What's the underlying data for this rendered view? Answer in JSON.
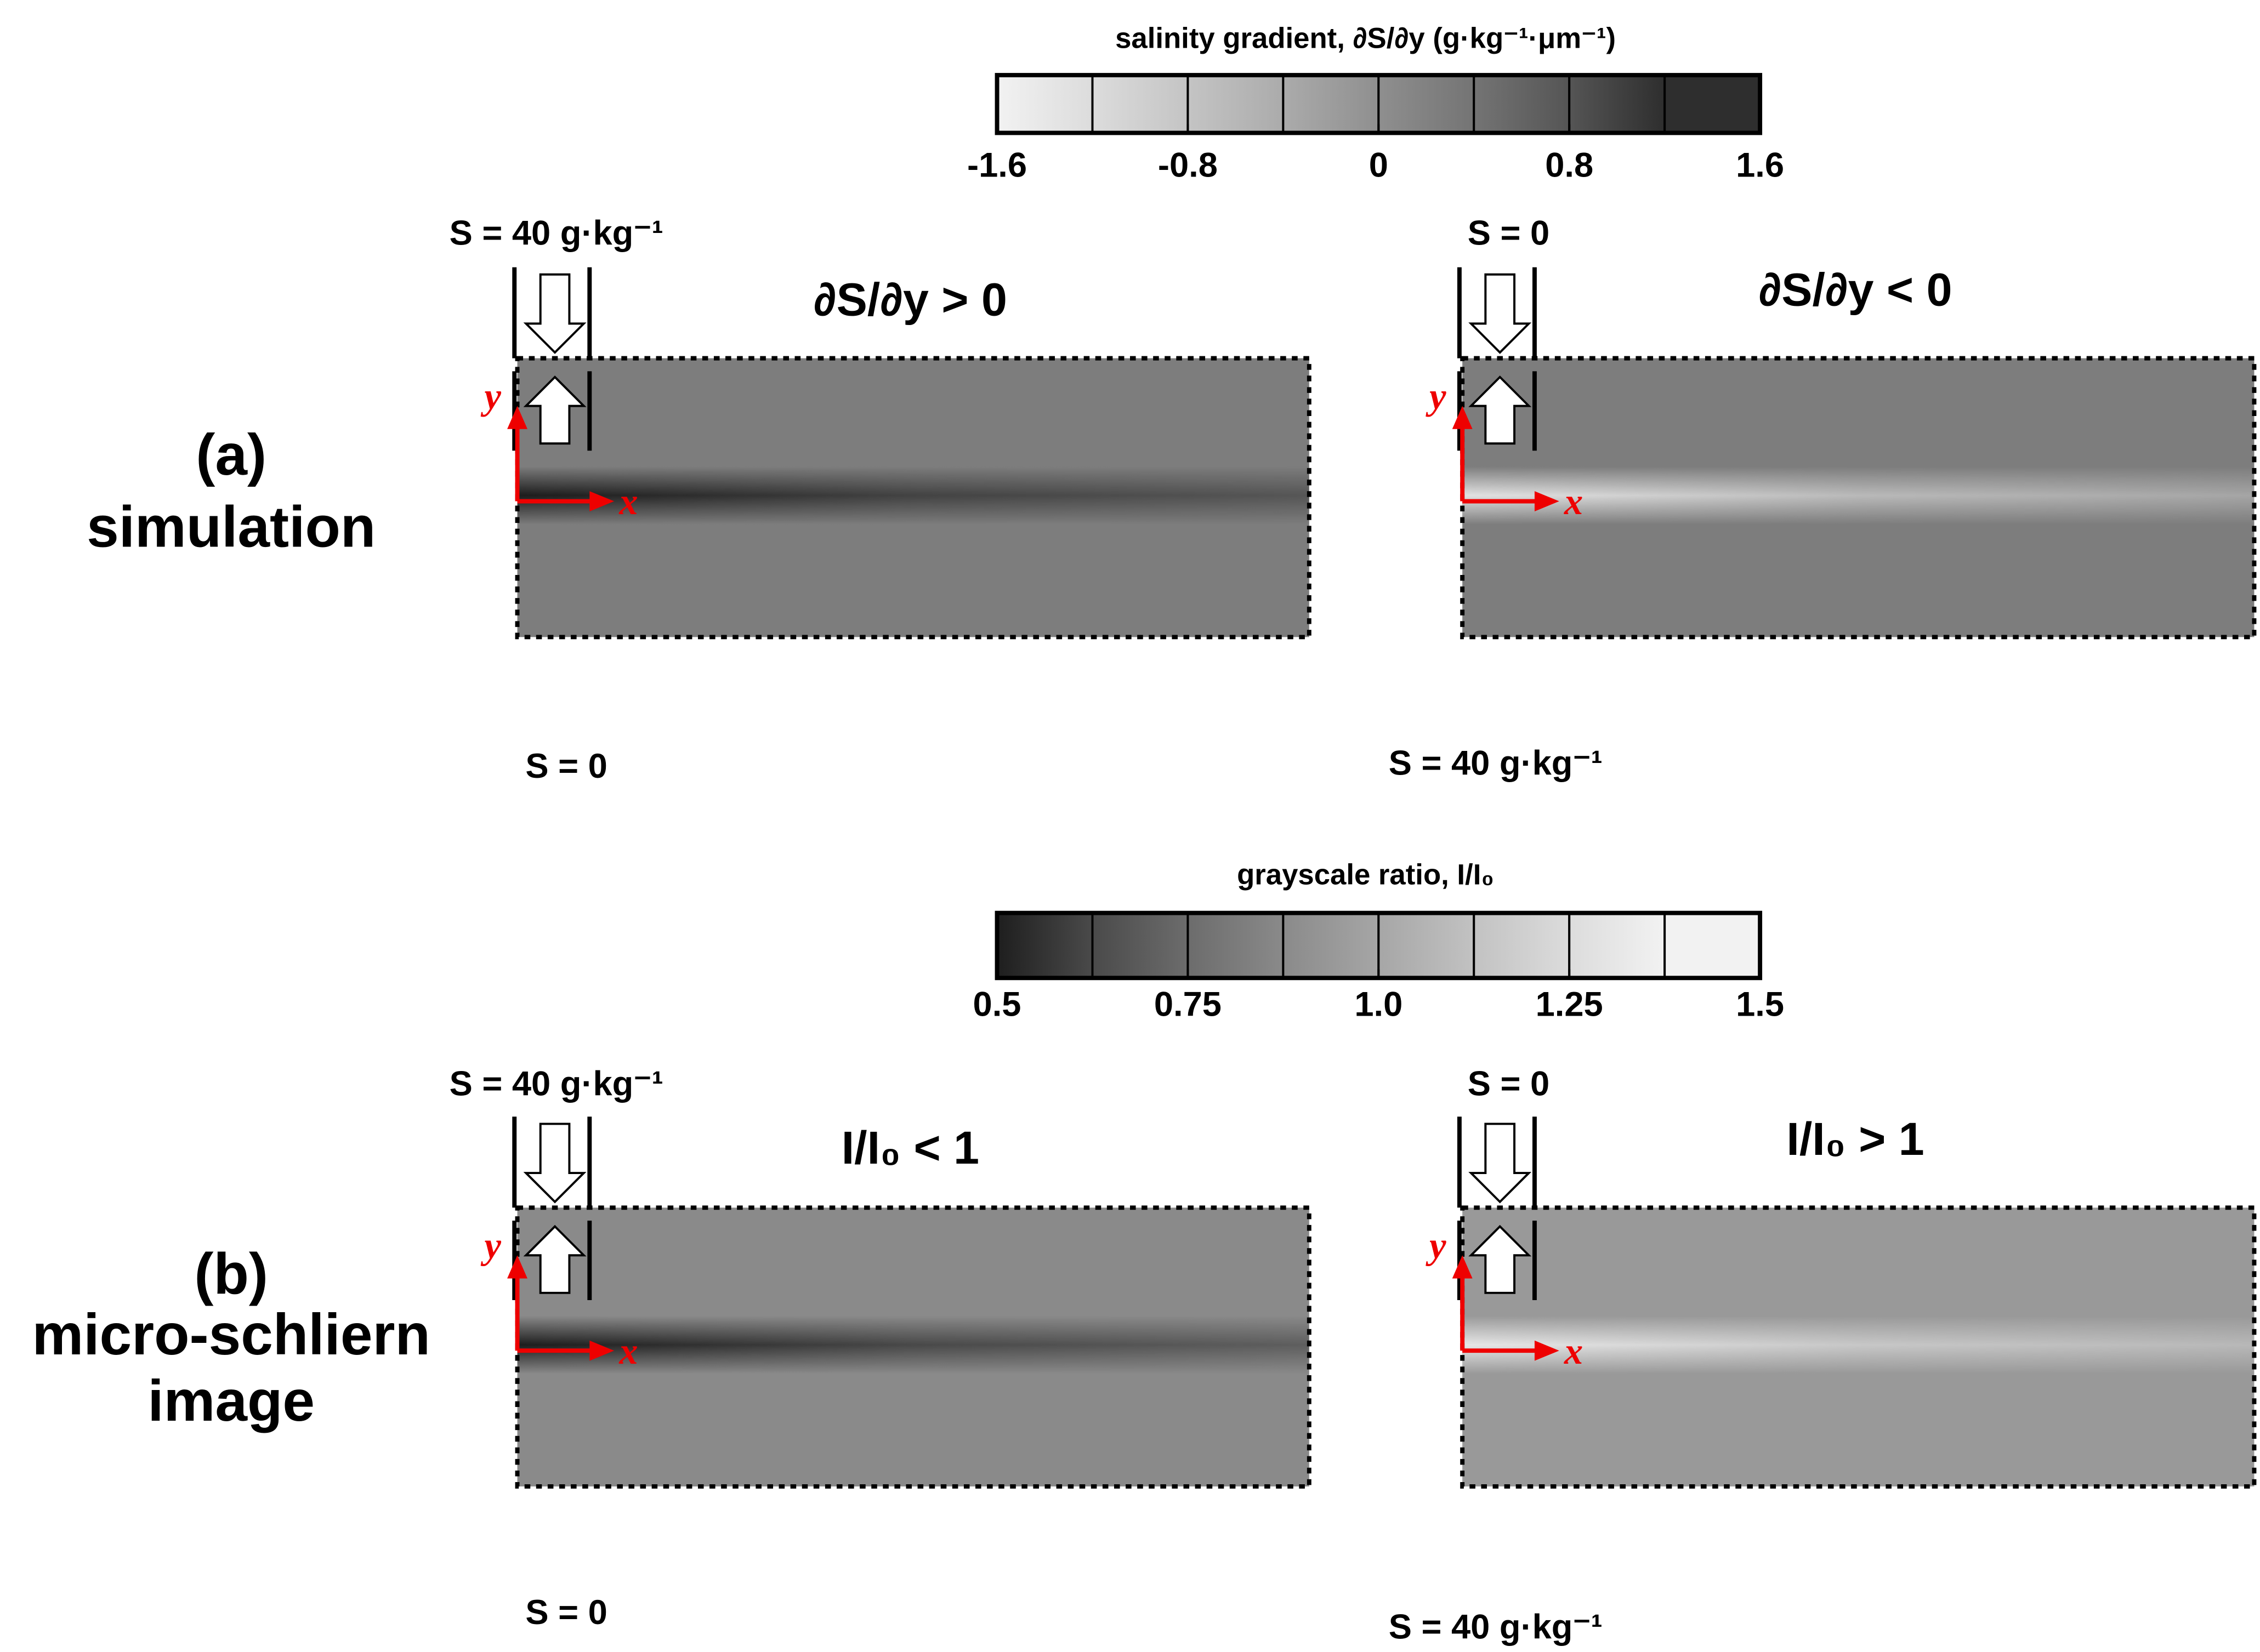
{
  "colorbars": [
    {
      "title": "salinity gradient, ∂S/∂y (g·kg⁻¹·μm⁻¹)",
      "range": [
        -1.6,
        1.6
      ],
      "ticks": [
        -1.6,
        -0.8,
        0,
        0.8,
        1.6
      ],
      "colors": [
        "#f2f2f2",
        "#dcdcdc",
        "#c4c4c4",
        "#ababab",
        "#8f8f8f",
        "#747474",
        "#555555",
        "#2e2e2e"
      ]
    },
    {
      "title": "grayscale ratio, I/I₀",
      "range": [
        0.5,
        1.5
      ],
      "ticks": [
        0.5,
        0.75,
        {
          "value": 1,
          "label": "1.0"
        },
        1.25,
        1.5
      ],
      "colors": [
        "#1e1e1e",
        "#4a4a4a",
        "#6c6c6c",
        "#8a8a8a",
        "#a6a6a6",
        "#c2c2c2",
        "#dcdcdc",
        "#f2f2f2"
      ]
    }
  ],
  "rows": [
    {
      "label": [
        "(a)",
        "simulation"
      ],
      "panels": [
        {
          "title": "∂S/∂y > 0",
          "top_label": "S = 40 g·kg⁻¹",
          "bottom_label": "S = 0",
          "x_axis": "x",
          "y_axis": "y",
          "band": "dark"
        },
        {
          "title": "∂S/∂y < 0",
          "top_label": "S = 0",
          "bottom_label": "S = 40 g·kg⁻¹",
          "x_axis": "x",
          "y_axis": "y",
          "band": "light"
        }
      ]
    },
    {
      "label": [
        "(b)",
        "micro-schliern",
        "image"
      ],
      "panels": [
        {
          "title": "I/I₀ < 1",
          "top_label": "S = 40 g·kg⁻¹",
          "bottom_label": "S = 0",
          "x_axis": "x",
          "y_axis": "y",
          "band": "dark"
        },
        {
          "title": "I/I₀ > 1",
          "top_label": "S = 0",
          "bottom_label": "S = 40 g·kg⁻¹",
          "x_axis": "x",
          "y_axis": "y",
          "band": "light"
        }
      ]
    }
  ]
}
